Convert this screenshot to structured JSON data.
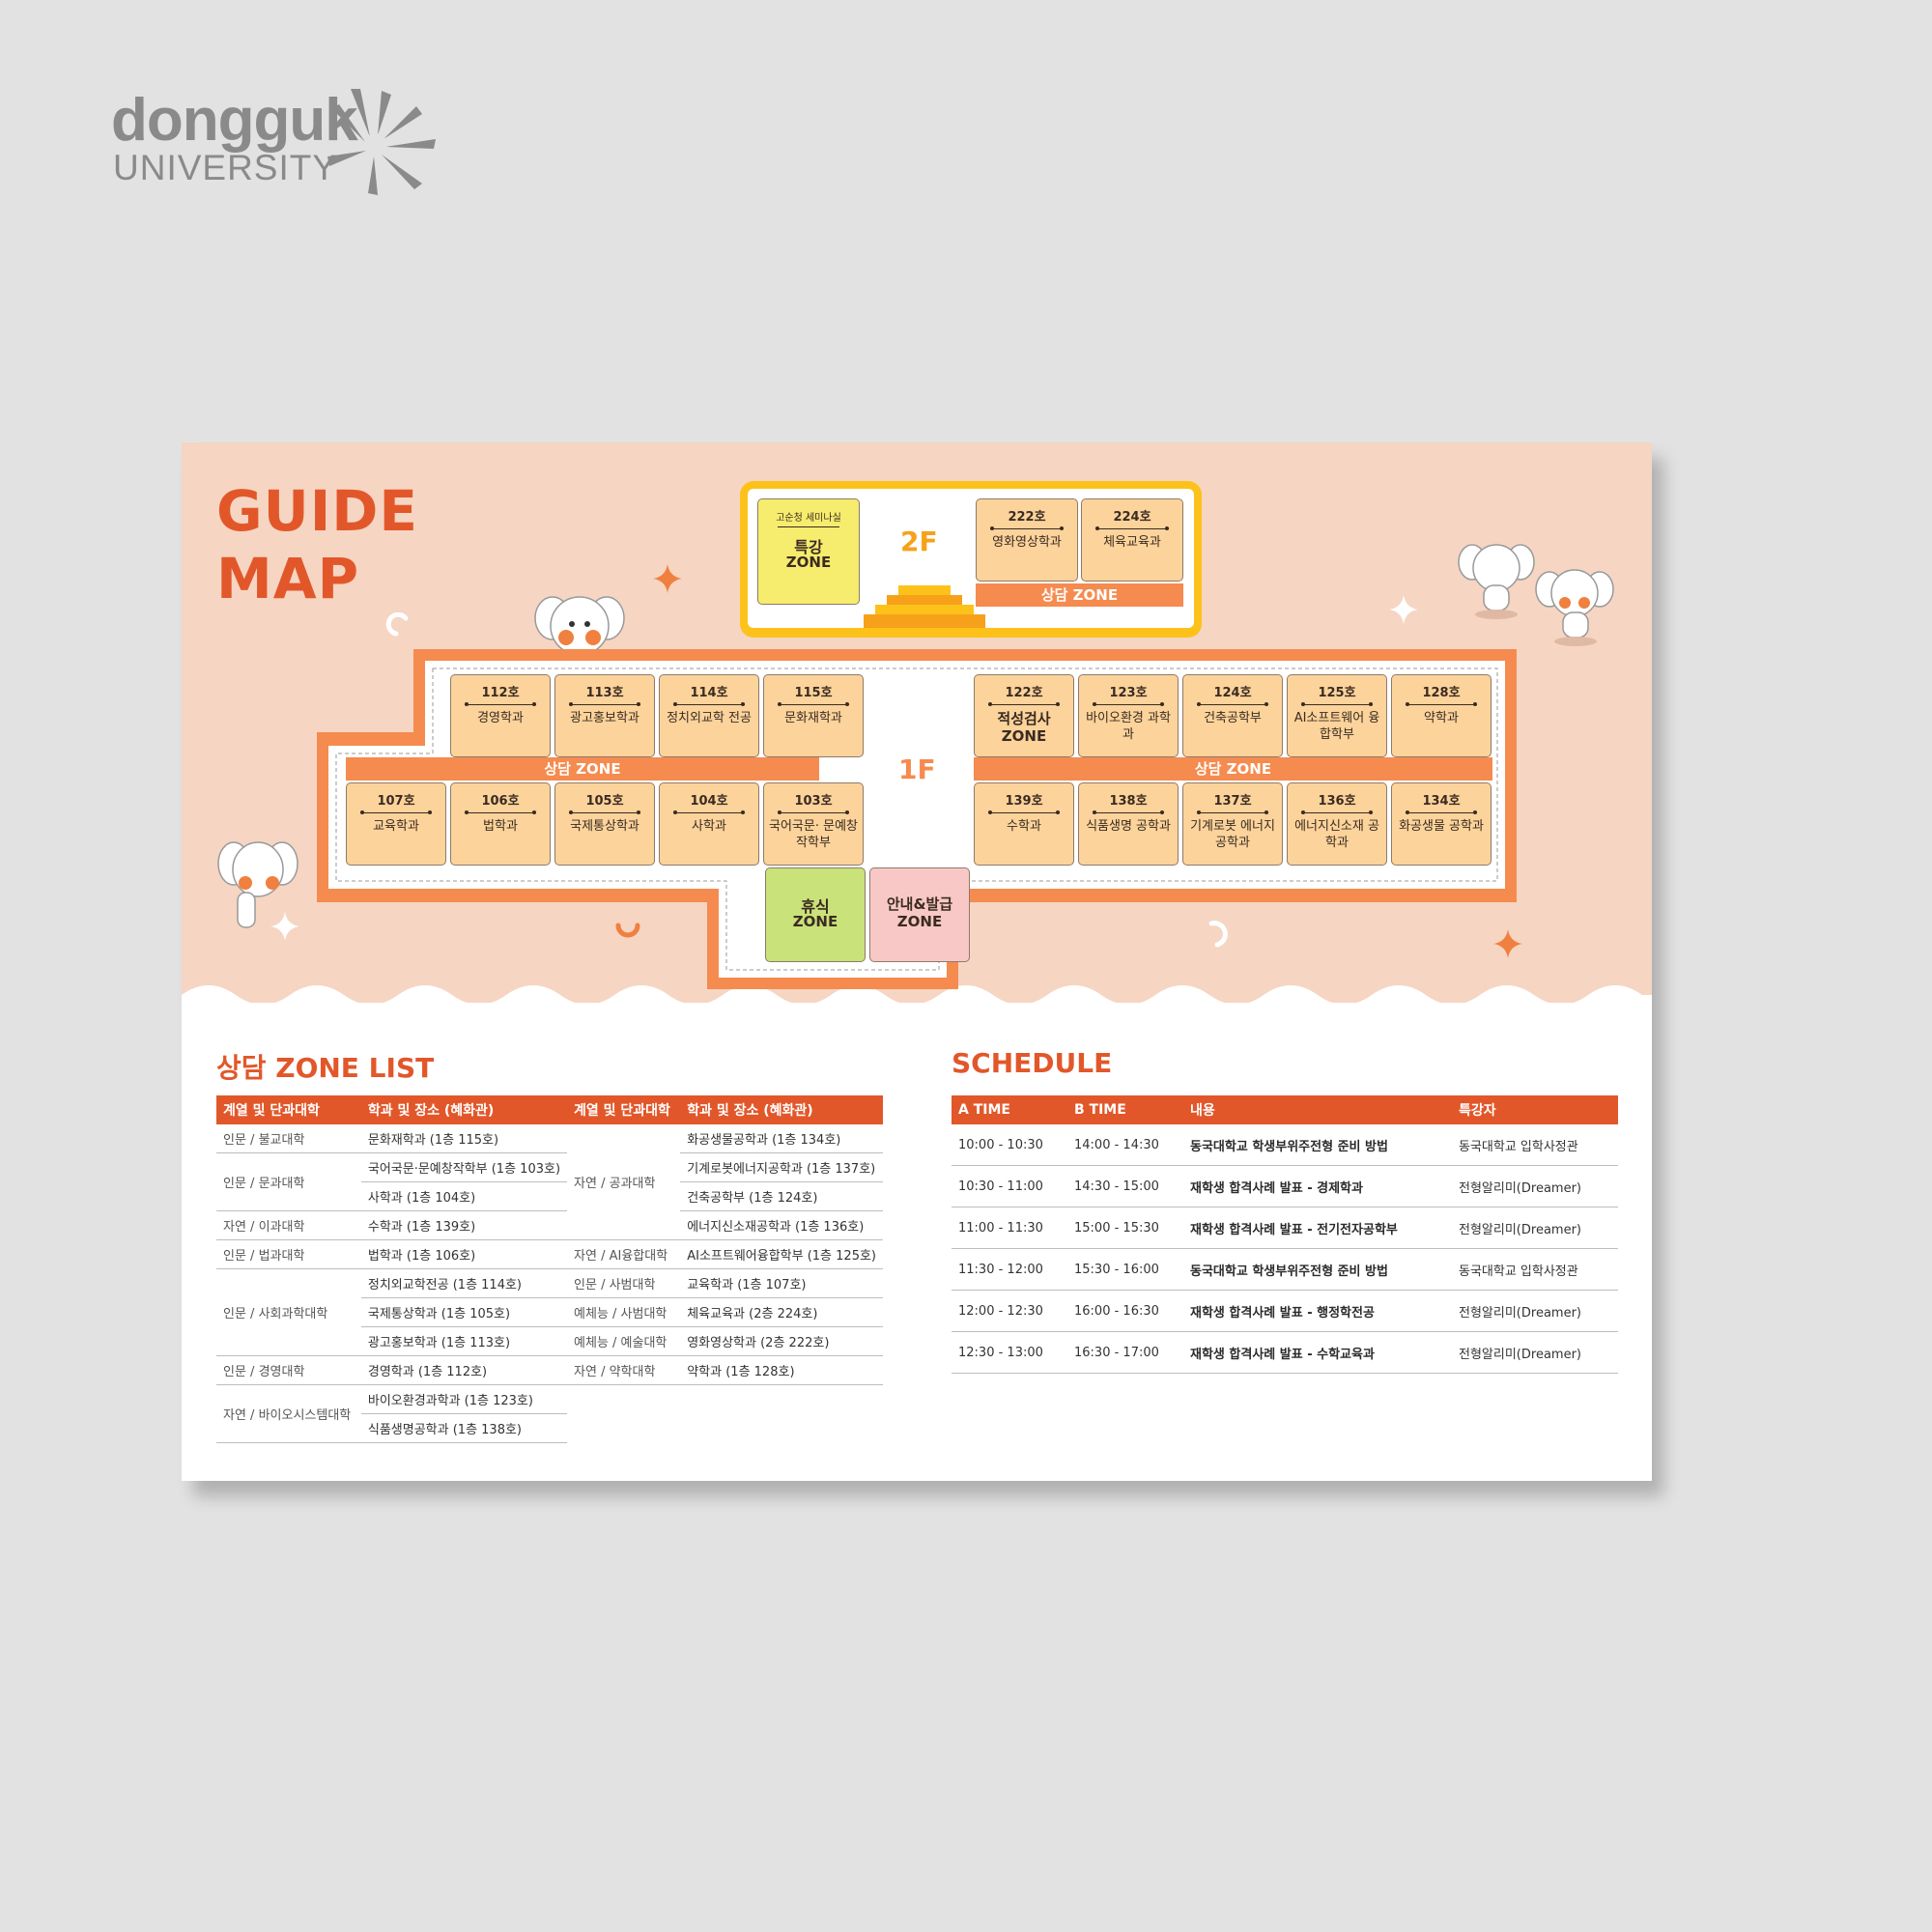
{
  "logo": {
    "word": "dongguk",
    "sub": "UNIVERSITY"
  },
  "header": {
    "title_line1": "GUIDE",
    "title_line2": "MAP"
  },
  "floor2": {
    "label": "2F",
    "special_room": {
      "top": "고순청 세미나실",
      "name": "특강",
      "zone": "ZONE"
    },
    "rooms": [
      {
        "num": "222호",
        "name": "영화영상학과"
      },
      {
        "num": "224호",
        "name": "체육교육과"
      }
    ],
    "zone_label": "상담 ZONE"
  },
  "floor1": {
    "label": "1F",
    "zone_label": "상담 ZONE",
    "left_top": [
      {
        "num": "112호",
        "name": "경영학과"
      },
      {
        "num": "113호",
        "name": "광고홍보학과"
      },
      {
        "num": "114호",
        "name": "정치외교학 전공"
      },
      {
        "num": "115호",
        "name": "문화재학과"
      }
    ],
    "left_bottom": [
      {
        "num": "107호",
        "name": "교육학과"
      },
      {
        "num": "106호",
        "name": "법학과"
      },
      {
        "num": "105호",
        "name": "국제통상학과"
      },
      {
        "num": "104호",
        "name": "사학과"
      },
      {
        "num": "103호",
        "name": "국어국문· 문예창작학부"
      }
    ],
    "right_top": [
      {
        "num": "122호",
        "name": "적성검사 ZONE"
      },
      {
        "num": "123호",
        "name": "바이오환경 과학과"
      },
      {
        "num": "124호",
        "name": "건축공학부"
      },
      {
        "num": "125호",
        "name": "AI소프트웨어 융합학부"
      },
      {
        "num": "128호",
        "name": "약학과"
      }
    ],
    "right_bottom": [
      {
        "num": "139호",
        "name": "수학과"
      },
      {
        "num": "138호",
        "name": "식품생명 공학과"
      },
      {
        "num": "137호",
        "name": "기계로봇 에너지공학과"
      },
      {
        "num": "136호",
        "name": "에너지신소재 공학과"
      },
      {
        "num": "134호",
        "name": "화공생물 공학과"
      }
    ],
    "rest_zone": {
      "name": "휴식",
      "zone": "ZONE"
    },
    "info_zone": {
      "name": "안내&발급",
      "zone": "ZONE"
    }
  },
  "zone_list": {
    "title": "상담 ZONE LIST",
    "headers": [
      "계열 및 단과대학",
      "학과 및 장소 (혜화관)",
      "계열 및 단과대학",
      "학과 및 장소 (혜화관)"
    ],
    "left": [
      {
        "cat": "인문 / 불교대학",
        "items": [
          "문화재학과 (1층 115호)"
        ]
      },
      {
        "cat": "인문 / 문과대학",
        "items": [
          "국어국문·문예창작학부 (1층 103호)",
          "사학과 (1층 104호)"
        ]
      },
      {
        "cat": "자연 / 이과대학",
        "items": [
          "수학과 (1층 139호)"
        ]
      },
      {
        "cat": "인문 / 법과대학",
        "items": [
          "법학과 (1층 106호)"
        ]
      },
      {
        "cat": "인문 / 사회과학대학",
        "items": [
          "정치외교학전공 (1층 114호)",
          "국제통상학과 (1층 105호)",
          "광고홍보학과 (1층 113호)"
        ]
      },
      {
        "cat": "인문 / 경영대학",
        "items": [
          "경영학과 (1층 112호)"
        ]
      },
      {
        "cat": "자연 / 바이오시스템대학",
        "items": [
          "바이오환경과학과 (1층 123호)",
          "식품생명공학과 (1층 138호)"
        ]
      }
    ],
    "right": [
      {
        "cat": "자연 / 공과대학",
        "items": [
          "화공생물공학과 (1층 134호)",
          "기계로봇에너지공학과 (1층 137호)",
          "건축공학부 (1층 124호)",
          "에너지신소재공학과 (1층 136호)"
        ]
      },
      {
        "cat": "자연 / AI융합대학",
        "items": [
          "AI소프트웨어융합학부 (1층 125호)"
        ]
      },
      {
        "cat": "인문 / 사범대학",
        "items": [
          "교육학과 (1층 107호)"
        ]
      },
      {
        "cat": "예체능 / 사범대학",
        "items": [
          "체육교육과 (2층 224호)"
        ]
      },
      {
        "cat": "예체능 / 예술대학",
        "items": [
          "영화영상학과 (2층 222호)"
        ]
      },
      {
        "cat": "자연 / 약학대학",
        "items": [
          "약학과 (1층 128호)"
        ]
      }
    ]
  },
  "schedule": {
    "title": "SCHEDULE",
    "headers": [
      "A TIME",
      "B TIME",
      "내용",
      "특강자"
    ],
    "rows": [
      [
        "10:00 - 10:30",
        "14:00 - 14:30",
        "동국대학교 학생부위주전형 준비 방법",
        "동국대학교 입학사정관"
      ],
      [
        "10:30 - 11:00",
        "14:30 - 15:00",
        "재학생 합격사례 발표 - 경제학과",
        "전형알리미(Dreamer)"
      ],
      [
        "11:00 - 11:30",
        "15:00 - 15:30",
        "재학생 합격사례 발표 - 전기전자공학부",
        "전형알리미(Dreamer)"
      ],
      [
        "11:30 - 12:00",
        "15:30 - 16:00",
        "동국대학교 학생부위주전형 준비 방법",
        "동국대학교 입학사정관"
      ],
      [
        "12:00 - 12:30",
        "16:00 - 16:30",
        "재학생 합격사례 발표 - 행정학전공",
        "전형알리미(Dreamer)"
      ],
      [
        "12:30 - 13:00",
        "16:30 - 17:00",
        "재학생 합격사례 발표 - 수학교육과",
        "전형알리미(Dreamer)"
      ]
    ]
  },
  "colors": {
    "accent": "#e2572a",
    "floor1": "#f58b4f",
    "floor2": "#fdc21a",
    "room": "#fbd39b",
    "rest": "#c9e27a",
    "info": "#f7c8c6",
    "special": "#f6ec6e"
  }
}
